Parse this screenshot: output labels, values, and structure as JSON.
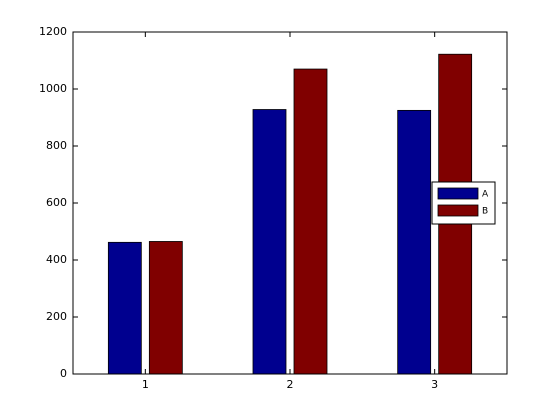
{
  "chart_data": {
    "type": "bar",
    "categories": [
      "1",
      "2",
      "3"
    ],
    "series": [
      {
        "name": "A",
        "color": "#00008f",
        "values": [
          462,
          928,
          925
        ]
      },
      {
        "name": "B",
        "color": "#800000",
        "values": [
          465,
          1070,
          1122
        ]
      }
    ],
    "ylim": [
      0,
      1200
    ],
    "yticks": [
      0,
      200,
      400,
      600,
      800,
      1000,
      1200
    ],
    "grid": false,
    "legend": "east"
  }
}
